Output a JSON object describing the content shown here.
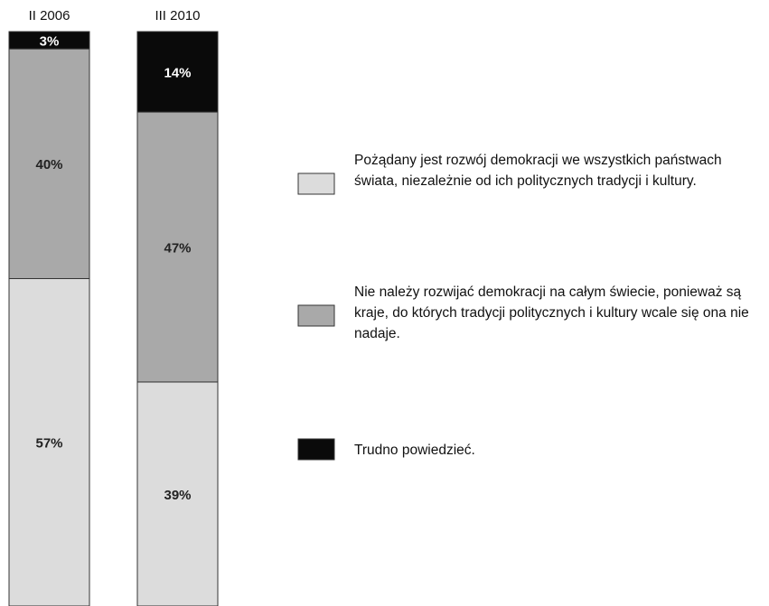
{
  "chart_data": {
    "type": "stacked_bar",
    "categories": [
      "II 2006",
      "III 2010"
    ],
    "ylim": [
      0,
      100
    ],
    "series": [
      {
        "name": "Pożądany jest rozwój demokracji we wszystkich państwach świata, niezależnie od ich politycznych tradycji i kultury.",
        "color": "#dcdcdc",
        "values": [
          57,
          39
        ],
        "value_labels": [
          "57%",
          "39%"
        ]
      },
      {
        "name": "Nie należy rozwijać demokracji na całym świecie, ponieważ są kraje, do których tradycji politycznych i kultury wcale się ona nie nadaje.",
        "color": "#a9a9a9",
        "values": [
          40,
          47
        ],
        "value_labels": [
          "40%",
          "47%"
        ]
      },
      {
        "name": "Trudno powiedzieć.",
        "color": "#0a0a0a",
        "values": [
          3,
          14
        ],
        "value_labels": [
          "3%",
          "14%"
        ]
      }
    ]
  }
}
